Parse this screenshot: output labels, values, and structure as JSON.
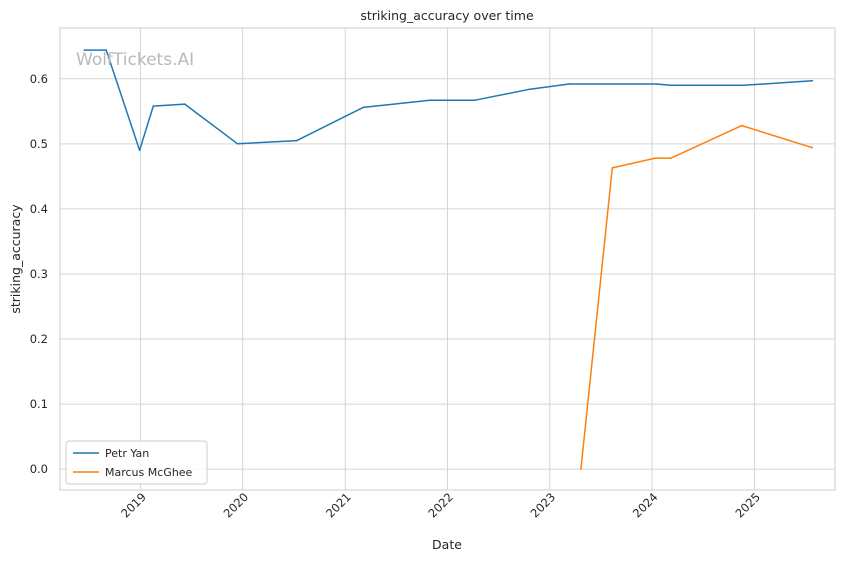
{
  "chart_data": {
    "type": "line",
    "title": "striking_accuracy over time",
    "xlabel": "Date",
    "ylabel": "striking_accuracy",
    "watermark": "WolfTickets.AI",
    "x_ticks": [
      "2019",
      "2020",
      "2021",
      "2022",
      "2023",
      "2024",
      "2025"
    ],
    "y_ticks": [
      "0.0",
      "0.1",
      "0.2",
      "0.3",
      "0.4",
      "0.5",
      "0.6"
    ],
    "xlim": [
      "2018-03-20",
      "2025-10-15"
    ],
    "ylim": [
      -0.032,
      0.678
    ],
    "grid": true,
    "legend_position": "lower-left",
    "series": [
      {
        "name": "Petr Yan",
        "color": "#1f77b4",
        "points": [
          [
            "2018-06-15",
            0.644
          ],
          [
            "2018-09-01",
            0.644
          ],
          [
            "2018-12-29",
            0.49
          ],
          [
            "2019-02-16",
            0.558
          ],
          [
            "2019-06-08",
            0.561
          ],
          [
            "2019-12-14",
            0.5
          ],
          [
            "2020-07-12",
            0.505
          ],
          [
            "2021-03-06",
            0.556
          ],
          [
            "2021-10-30",
            0.567
          ],
          [
            "2022-04-09",
            0.567
          ],
          [
            "2022-10-22",
            0.584
          ],
          [
            "2023-03-11",
            0.592
          ],
          [
            "2024-01-15",
            0.592
          ],
          [
            "2024-03-09",
            0.59
          ],
          [
            "2024-11-23",
            0.59
          ],
          [
            "2025-07-26",
            0.597
          ]
        ]
      },
      {
        "name": "Marcus McGhee",
        "color": "#ff7f0e",
        "points": [
          [
            "2023-04-22",
            0.0
          ],
          [
            "2023-08-12",
            0.463
          ],
          [
            "2024-01-13",
            0.478
          ],
          [
            "2024-03-09",
            0.478
          ],
          [
            "2024-11-16",
            0.528
          ],
          [
            "2025-07-26",
            0.494
          ]
        ]
      }
    ]
  }
}
